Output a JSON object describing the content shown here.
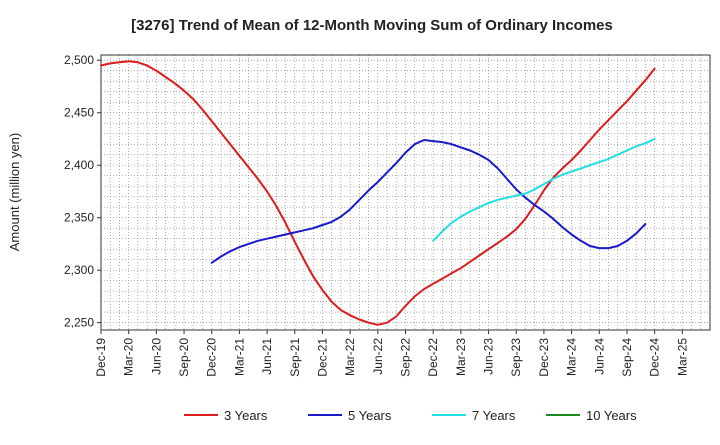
{
  "chart_data": {
    "type": "line",
    "title": "[3276]  Trend of Mean of 12-Month Moving Sum of Ordinary Incomes",
    "xlabel": "",
    "ylabel": "Amount (million yen)",
    "ylim": [
      2243,
      2505
    ],
    "yticks": [
      2250,
      2300,
      2350,
      2400,
      2450,
      2500
    ],
    "ytick_labels": [
      "2,250",
      "2,300",
      "2,350",
      "2,400",
      "2,450",
      "2,500"
    ],
    "x_start_index": 0,
    "x_end_index": 66,
    "xticks": [
      {
        "index": 0,
        "label": "Dec-19"
      },
      {
        "index": 3,
        "label": "Mar-20"
      },
      {
        "index": 6,
        "label": "Jun-20"
      },
      {
        "index": 9,
        "label": "Sep-20"
      },
      {
        "index": 12,
        "label": "Dec-20"
      },
      {
        "index": 15,
        "label": "Mar-21"
      },
      {
        "index": 18,
        "label": "Jun-21"
      },
      {
        "index": 21,
        "label": "Sep-21"
      },
      {
        "index": 24,
        "label": "Dec-21"
      },
      {
        "index": 27,
        "label": "Mar-22"
      },
      {
        "index": 30,
        "label": "Jun-22"
      },
      {
        "index": 33,
        "label": "Sep-22"
      },
      {
        "index": 36,
        "label": "Dec-22"
      },
      {
        "index": 39,
        "label": "Mar-23"
      },
      {
        "index": 42,
        "label": "Jun-23"
      },
      {
        "index": 45,
        "label": "Sep-23"
      },
      {
        "index": 48,
        "label": "Dec-23"
      },
      {
        "index": 51,
        "label": "Mar-24"
      },
      {
        "index": 54,
        "label": "Jun-24"
      },
      {
        "index": 57,
        "label": "Sep-24"
      },
      {
        "index": 60,
        "label": "Dec-24"
      },
      {
        "index": 63,
        "label": "Mar-25"
      }
    ],
    "grid": true,
    "legend_position": "bottom",
    "series": [
      {
        "name": "3 Years",
        "color": "#dd1c1c",
        "start_index": 0,
        "values": [
          2495,
          2497,
          2498,
          2499,
          2498,
          2495,
          2490,
          2484,
          2478,
          2471,
          2463,
          2453,
          2442,
          2431,
          2420,
          2409,
          2398,
          2387,
          2375,
          2361,
          2345,
          2327,
          2310,
          2294,
          2281,
          2270,
          2262,
          2257,
          2253,
          2250,
          2248,
          2250,
          2256,
          2266,
          2275,
          2282,
          2287,
          2292,
          2297,
          2302,
          2308,
          2314,
          2320,
          2326,
          2332,
          2339,
          2349,
          2362,
          2376,
          2388,
          2397,
          2405,
          2414,
          2424,
          2434,
          2443,
          2452,
          2461,
          2471,
          2481,
          2492
        ]
      },
      {
        "name": "5 Years",
        "color": "#1a1acc",
        "start_index": 12,
        "values": [
          2307,
          2313,
          2318,
          2322,
          2325,
          2328,
          2330,
          2332,
          2334,
          2336,
          2338,
          2340,
          2343,
          2346,
          2351,
          2358,
          2367,
          2376,
          2384,
          2393,
          2402,
          2412,
          2420,
          2424,
          2423,
          2422,
          2420,
          2417,
          2414,
          2410,
          2405,
          2397,
          2387,
          2377,
          2369,
          2362,
          2356,
          2349,
          2341,
          2334,
          2328,
          2323,
          2321,
          2321,
          2323,
          2328,
          2335,
          2344
        ]
      },
      {
        "name": "7 Years",
        "color": "#22e0e0",
        "start_index": 36,
        "values": [
          2328,
          2337,
          2345,
          2351,
          2356,
          2360,
          2364,
          2367,
          2369,
          2371,
          2373,
          2377,
          2382,
          2387,
          2391,
          2394,
          2397,
          2400,
          2403,
          2406,
          2410,
          2414,
          2418,
          2421,
          2425
        ]
      },
      {
        "name": "10 Years",
        "color": "#1f8a1f",
        "start_index": 0,
        "values": []
      }
    ]
  }
}
